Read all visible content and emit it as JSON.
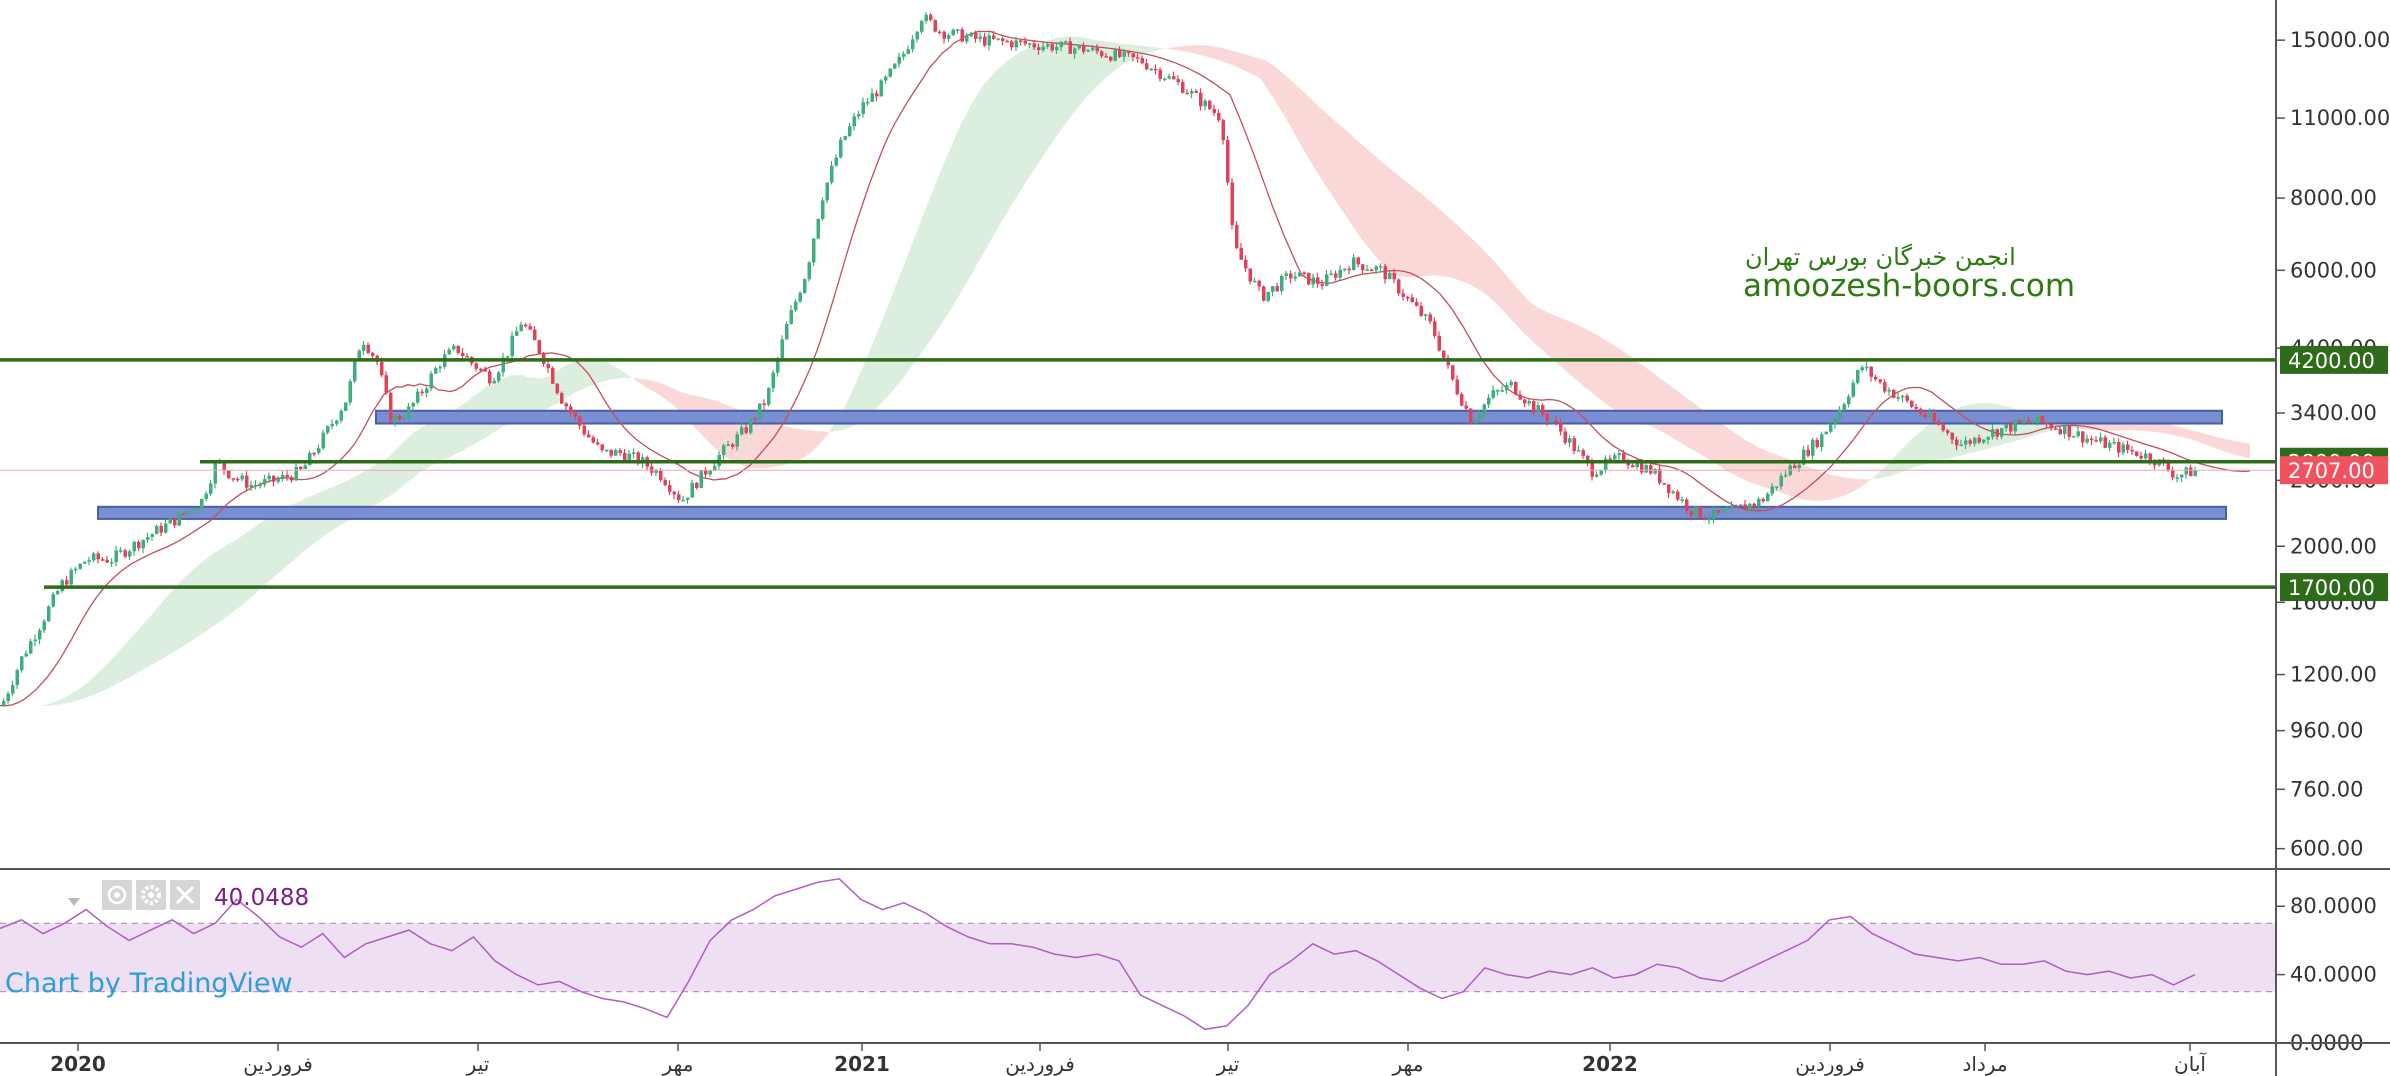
{
  "chart_data": [
    {
      "type": "candlestick",
      "scale": "log",
      "ylim": [
        560,
        17600
      ],
      "y_ticks": [
        "15000.00",
        "11000.00",
        "8000.00",
        "6000.00",
        "4400.00",
        "3400.00",
        "2600.00",
        "2000.00",
        "1600.00",
        "1200.00",
        "960.00",
        "760.00",
        "600.00"
      ],
      "y_tick_values": [
        15000,
        11000,
        8000,
        6000,
        4400,
        3400,
        2600,
        2000,
        1600,
        1200,
        960,
        760,
        600
      ],
      "x_ticks": [
        {
          "label": "2020",
          "bold": true
        },
        {
          "label": "فروردین",
          "bold": false
        },
        {
          "label": "تیر",
          "bold": false
        },
        {
          "label": "مهر",
          "bold": false
        },
        {
          "label": "2021",
          "bold": true
        },
        {
          "label": "فروردین",
          "bold": false
        },
        {
          "label": "تیر",
          "bold": false
        },
        {
          "label": "مهر",
          "bold": false
        },
        {
          "label": "2022",
          "bold": true
        },
        {
          "label": "فروردین",
          "bold": false
        },
        {
          "label": "مرداد",
          "bold": false
        },
        {
          "label": "آبان",
          "bold": false
        }
      ],
      "price_path": [
        [
          0,
          1060
        ],
        [
          20,
          1280
        ],
        [
          40,
          1480
        ],
        [
          60,
          1720
        ],
        [
          85,
          1900
        ],
        [
          110,
          1900
        ],
        [
          140,
          2050
        ],
        [
          175,
          2230
        ],
        [
          200,
          2400
        ],
        [
          215,
          2800
        ],
        [
          230,
          2650
        ],
        [
          250,
          2550
        ],
        [
          275,
          2600
        ],
        [
          300,
          2700
        ],
        [
          320,
          3050
        ],
        [
          345,
          3600
        ],
        [
          360,
          4600
        ],
        [
          375,
          4200
        ],
        [
          390,
          3300
        ],
        [
          405,
          3400
        ],
        [
          420,
          3700
        ],
        [
          440,
          4200
        ],
        [
          455,
          4400
        ],
        [
          470,
          4150
        ],
        [
          490,
          3900
        ],
        [
          505,
          4300
        ],
        [
          520,
          4900
        ],
        [
          540,
          4300
        ],
        [
          560,
          3600
        ],
        [
          580,
          3200
        ],
        [
          600,
          2900
        ],
        [
          620,
          2900
        ],
        [
          640,
          2800
        ],
        [
          660,
          2650
        ],
        [
          680,
          2400
        ],
        [
          700,
          2650
        ],
        [
          720,
          2900
        ],
        [
          745,
          3200
        ],
        [
          765,
          3600
        ],
        [
          785,
          4800
        ],
        [
          805,
          6000
        ],
        [
          820,
          8000
        ],
        [
          840,
          10000
        ],
        [
          860,
          11500
        ],
        [
          880,
          12500
        ],
        [
          900,
          14000
        ],
        [
          920,
          16500
        ],
        [
          940,
          15500
        ],
        [
          980,
          15000
        ],
        [
          1080,
          14500
        ],
        [
          1140,
          13800
        ],
        [
          1180,
          12500
        ],
        [
          1220,
          11000
        ],
        [
          1232,
          6600
        ],
        [
          1260,
          5400
        ],
        [
          1290,
          5900
        ],
        [
          1320,
          5700
        ],
        [
          1350,
          6200
        ],
        [
          1380,
          6000
        ],
        [
          1400,
          5500
        ],
        [
          1430,
          4800
        ],
        [
          1450,
          3900
        ],
        [
          1470,
          3300
        ],
        [
          1490,
          3650
        ],
        [
          1510,
          3800
        ],
        [
          1530,
          3500
        ],
        [
          1550,
          3300
        ],
        [
          1570,
          3000
        ],
        [
          1590,
          2700
        ],
        [
          1620,
          2850
        ],
        [
          1650,
          2700
        ],
        [
          1670,
          2500
        ],
        [
          1690,
          2300
        ],
        [
          1710,
          2250
        ],
        [
          1730,
          2300
        ],
        [
          1760,
          2400
        ],
        [
          1790,
          2750
        ],
        [
          1820,
          3100
        ],
        [
          1840,
          3500
        ],
        [
          1860,
          4100
        ],
        [
          1880,
          3800
        ],
        [
          1900,
          3600
        ],
        [
          1930,
          3300
        ],
        [
          1960,
          3000
        ],
        [
          1990,
          3150
        ],
        [
          2030,
          3300
        ],
        [
          2060,
          3200
        ],
        [
          2090,
          3050
        ],
        [
          2120,
          2950
        ],
        [
          2150,
          2850
        ],
        [
          2175,
          2650
        ],
        [
          2195,
          2707
        ]
      ],
      "levels": [
        {
          "label": "4200.00",
          "value": 4200
        },
        {
          "label": "2800.00",
          "value": 2800
        },
        {
          "label": "1700.00",
          "value": 1700
        }
      ],
      "current_price": {
        "label": "2707.00",
        "value": 2707
      },
      "zones": [
        {
          "from": 3260,
          "to": 3430
        },
        {
          "from": 2230,
          "to": 2340
        }
      ],
      "watermark": {
        "line1": "انجمن خبرگان بورس تهران",
        "line2": "amoozesh-boors.com"
      },
      "colors": {
        "up": "#3fae7f",
        "down": "#e0425a",
        "level": "#2e6b1a",
        "zone": "#7a8fd1",
        "cloud_bull": "#dceedd",
        "cloud_bear": "#fbd8d8",
        "current": "#f15260"
      }
    },
    {
      "type": "line",
      "indicator": "RSI",
      "value_label": "40.0488",
      "ylim": [
        0,
        100
      ],
      "y_ticks": [
        "80.0000",
        "40.0000",
        "0.0000"
      ],
      "y_tick_values": [
        80,
        40,
        0
      ],
      "band": [
        30,
        70
      ],
      "values": [
        67,
        72,
        64,
        70,
        78,
        68,
        60,
        66,
        72,
        64,
        70,
        84,
        74,
        62,
        56,
        64,
        50,
        58,
        62,
        66,
        58,
        54,
        62,
        48,
        40,
        34,
        36,
        30,
        26,
        24,
        20,
        15,
        36,
        60,
        72,
        78,
        86,
        90,
        94,
        96,
        84,
        78,
        82,
        76,
        68,
        62,
        58,
        58,
        56,
        52,
        50,
        52,
        48,
        28,
        22,
        16,
        8,
        10,
        22,
        40,
        48,
        58,
        52,
        54,
        48,
        40,
        32,
        26,
        30,
        44,
        40,
        38,
        42,
        40,
        44,
        38,
        40,
        46,
        44,
        38,
        36,
        42,
        48,
        54,
        60,
        72,
        74,
        64,
        58,
        52,
        50,
        48,
        50,
        46,
        46,
        48,
        42,
        40,
        42,
        38,
        40,
        34,
        40
      ],
      "colors": {
        "line": "#b05cc4",
        "band": "#efdff2",
        "band_edge": "#b08ab8"
      }
    }
  ],
  "credit": "Chart by TradingView",
  "icons": [
    "eye-icon",
    "gear-icon",
    "close-icon"
  ]
}
